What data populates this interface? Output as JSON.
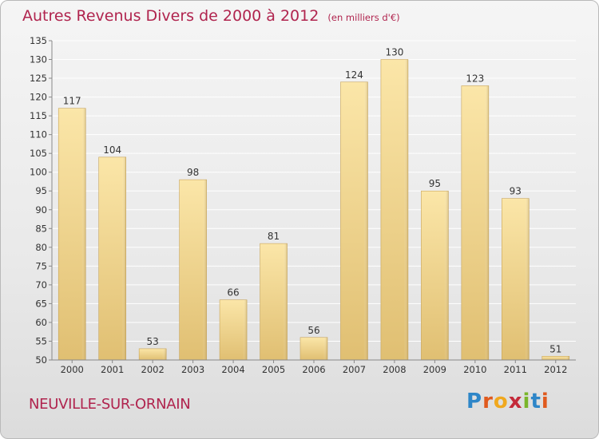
{
  "title": "Autres Revenus Divers de 2000 à 2012",
  "subtitle": "(en milliers d'€)",
  "city": "NEUVILLE-SUR-ORNAIN",
  "logo": {
    "text": "Proxiti",
    "letters": [
      {
        "char": "P",
        "color": "#2e86c8"
      },
      {
        "char": "r",
        "color": "#e05a1e"
      },
      {
        "char": "o",
        "color": "#f0a81e"
      },
      {
        "char": "x",
        "color": "#c42a3a"
      },
      {
        "char": "i",
        "color": "#7ab52a"
      },
      {
        "char": "t",
        "color": "#2e86c8"
      },
      {
        "char": "i",
        "color": "#e05a1e"
      }
    ]
  },
  "colors": {
    "bar_light": "#fbe6a8",
    "bar_dark": "#e0bf72",
    "bar_edge": "#c8a55c",
    "grid": "#ffffff",
    "title": "#b0244e"
  },
  "chart_data": {
    "type": "bar",
    "categories": [
      "2000",
      "2001",
      "2002",
      "2003",
      "2004",
      "2005",
      "2006",
      "2007",
      "2008",
      "2009",
      "2010",
      "2011",
      "2012"
    ],
    "values": [
      117,
      104,
      53,
      98,
      66,
      81,
      56,
      124,
      130,
      95,
      123,
      93,
      51
    ],
    "ylim": [
      50,
      135
    ],
    "yticks": [
      50,
      55,
      60,
      65,
      70,
      75,
      80,
      85,
      90,
      95,
      100,
      105,
      110,
      115,
      120,
      125,
      130,
      135
    ],
    "grid": true,
    "xlabel": "",
    "ylabel": ""
  }
}
